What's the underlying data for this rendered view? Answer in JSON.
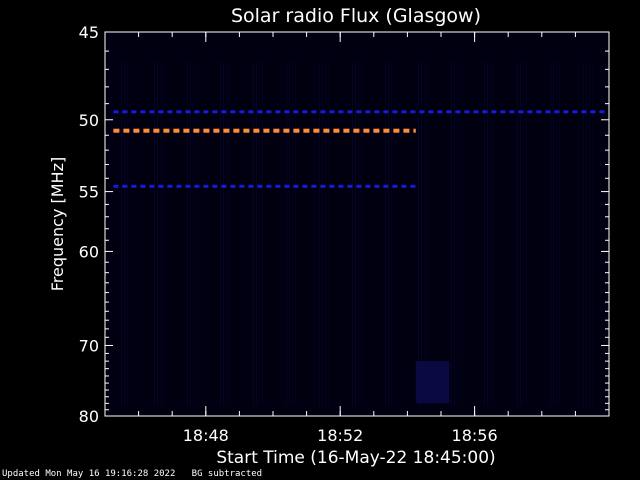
{
  "chart_data": {
    "type": "heatmap",
    "title": "Solar radio Flux (Glasgow)",
    "xlabel": "Start Time (16-May-22 18:45:00)",
    "ylabel": "Frequency [MHz]",
    "x_start": "18:45:00",
    "x_end": "19:00:00",
    "xticks": [
      "18:48",
      "18:52",
      "18:56"
    ],
    "ylim": [
      45,
      80
    ],
    "yticks": [
      45,
      50,
      55,
      60,
      70,
      80
    ],
    "background_color": "#000010",
    "features": [
      {
        "kind": "dashed-band",
        "freq_mhz": 49.5,
        "t_start": "18:45:15",
        "t_end": "19:00:00",
        "color": "#1a1ad8"
      },
      {
        "kind": "dashed-band",
        "freq_mhz": 50.7,
        "t_start": "18:45:15",
        "t_end": "18:54:15",
        "color": "#ff8c3a"
      },
      {
        "kind": "dashed-band",
        "freq_mhz": 54.6,
        "t_start": "18:45:15",
        "t_end": "18:54:15",
        "color": "#1a1ad8"
      },
      {
        "kind": "faint-burst",
        "freq_mhz_range": [
          72,
          78
        ],
        "t_start": "18:54:15",
        "t_end": "18:55:15",
        "color": "#0d0d55"
      }
    ]
  },
  "footer": {
    "updated": "Updated Mon May 16 19:16:28 2022",
    "note": "BG subtracted"
  },
  "colors": {
    "axis": "#ffffff",
    "orange": "#ff8c3a",
    "blue": "#1a1ad8"
  }
}
